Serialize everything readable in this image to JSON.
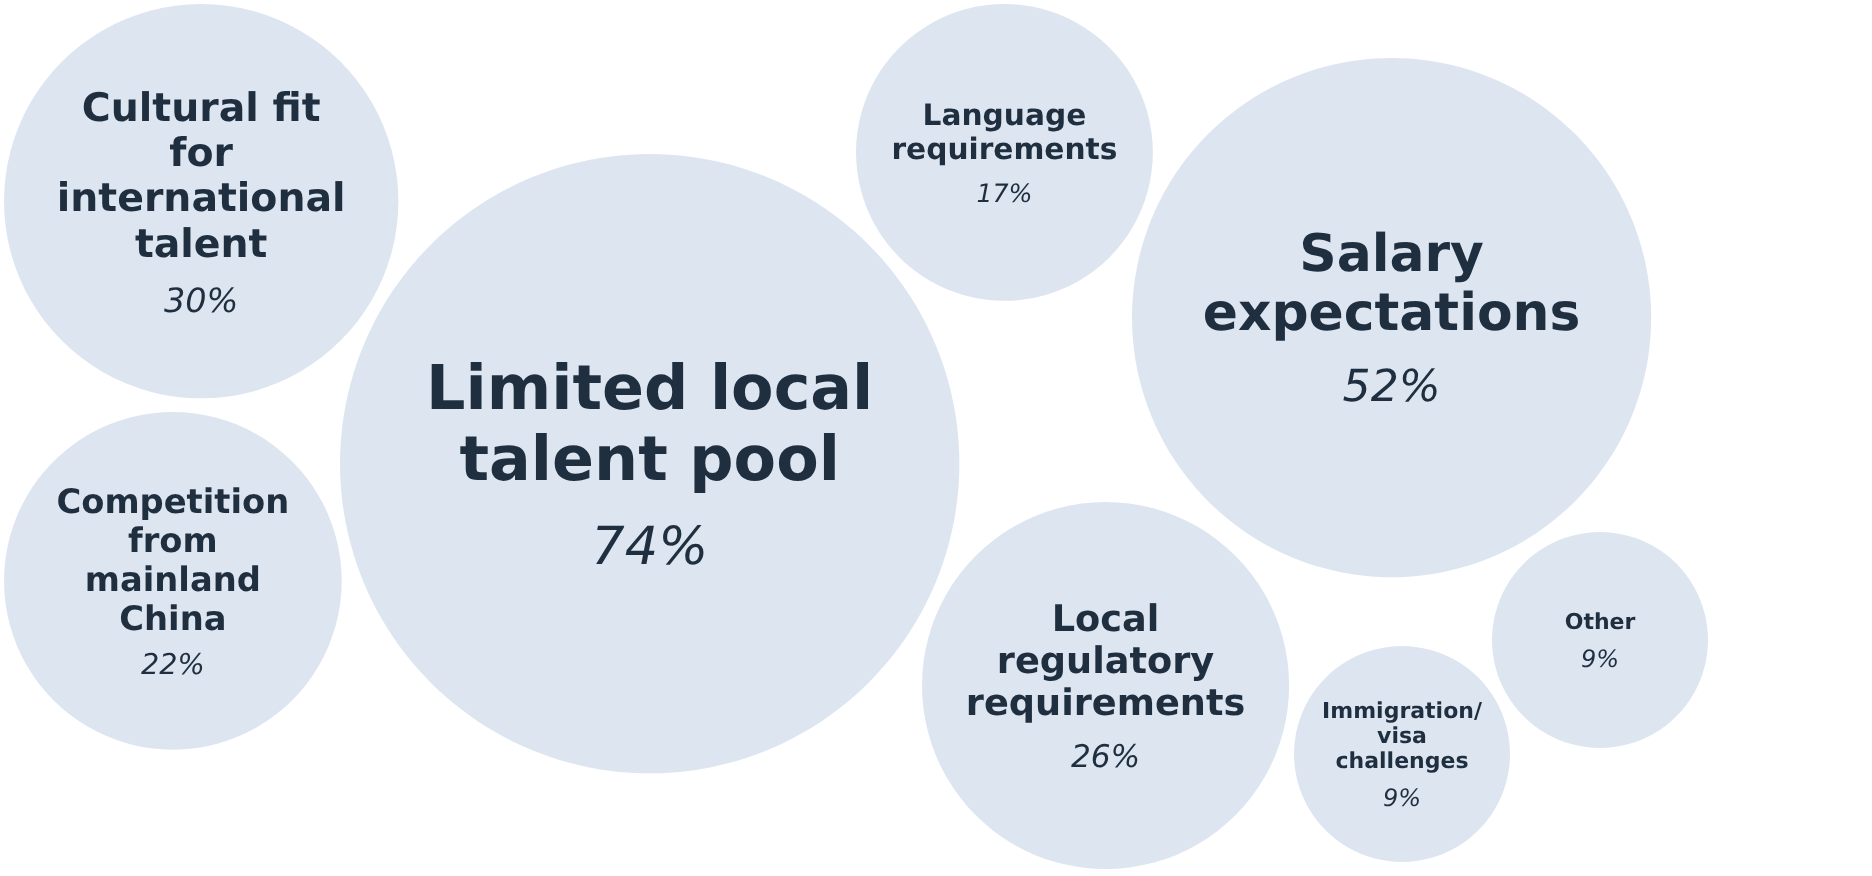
{
  "chart_data": {
    "type": "other",
    "categories": [
      "Cultural fit for international talent",
      "Competition from mainland China",
      "Limited local talent pool",
      "Language requirements",
      "Local regulatory requirements",
      "Salary expectations",
      "Immigration/ visa challenges",
      "Other"
    ],
    "values": [
      30,
      22,
      74,
      17,
      26,
      52,
      9,
      9
    ],
    "value_labels": [
      "30%",
      "22%",
      "74%",
      "17%",
      "26%",
      "52%",
      "9%",
      "9%"
    ],
    "color": "#dde6f0"
  }
}
